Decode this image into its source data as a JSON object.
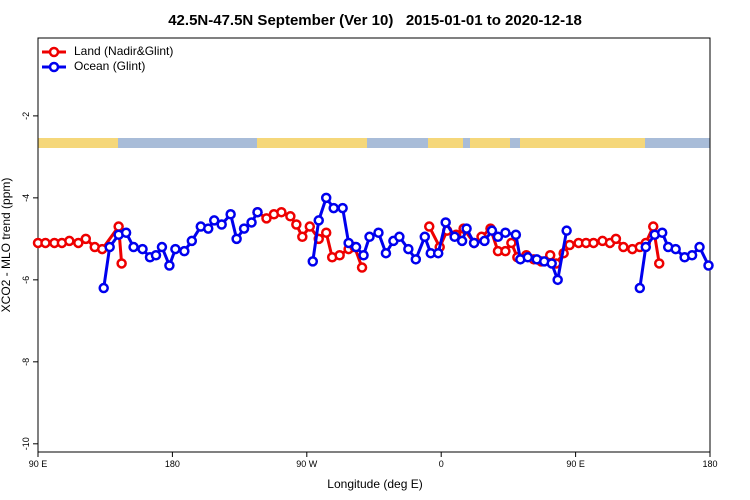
{
  "chart_data": {
    "type": "line",
    "title": "42.5N-47.5N September (Ver 10)   2015-01-01 to 2020-12-18",
    "xlabel": "Longitude (deg E)",
    "ylabel": "XCO2 - MLO trend (ppm)",
    "xlim": [
      90,
      540
    ],
    "ylim": [
      -10.2,
      -0.1
    ],
    "xticks": [
      {
        "value": 90,
        "label": "90 E"
      },
      180,
      {
        "value": 270,
        "label": "90 W"
      },
      {
        "value": 360,
        "label": "0"
      },
      {
        "value": 450,
        "label": "90 E"
      },
      {
        "value": 540,
        "label": "180"
      }
    ],
    "yticks": [
      -10,
      -8,
      -6,
      -4,
      -2
    ],
    "legend": "top-left",
    "series": [
      {
        "name": "Land (Nadir&Glint)",
        "color": "#ee0000",
        "x": [
          90,
          95,
          101,
          106,
          111,
          117,
          122,
          128,
          133,
          144,
          146,
          200,
          237,
          243,
          248,
          253,
          259,
          263,
          267,
          272,
          278,
          283,
          287,
          292,
          298,
          302,
          307,
          330,
          352,
          359,
          364,
          370,
          375,
          382,
          387,
          393,
          398,
          403,
          407,
          411,
          417,
          422,
          427,
          433,
          437,
          442,
          446,
          452,
          457,
          462,
          468,
          473,
          477,
          482,
          488,
          493,
          497,
          502,
          506
        ],
        "values": [
          -5.1,
          -5.1,
          -5.1,
          -5.1,
          -5.05,
          -5.1,
          -5.0,
          -5.2,
          -5.25,
          -4.7,
          -5.6,
          null,
          -4.35,
          -4.5,
          -4.4,
          -4.35,
          -4.45,
          -4.65,
          -4.95,
          -4.7,
          -5.0,
          -4.85,
          -5.45,
          -5.4,
          -5.25,
          -5.2,
          -5.7,
          null,
          -4.7,
          -5.2,
          -4.8,
          -4.9,
          -4.75,
          -5.1,
          -4.95,
          -4.75,
          -5.3,
          -5.3,
          -5.1,
          -5.45,
          -5.4,
          -5.5,
          -5.55,
          -5.4,
          -5.6,
          -5.35,
          -5.15,
          -5.1,
          -5.1,
          -5.1,
          -5.05,
          -5.1,
          -5.0,
          -5.2,
          -5.25,
          -5.2,
          -5.1,
          -4.7,
          -5.6
        ]
      },
      {
        "name": "Ocean (Glint)",
        "color": "#0000ee",
        "x": [
          134,
          138,
          144,
          149,
          154,
          160,
          165,
          169,
          173,
          178,
          182,
          188,
          193,
          199,
          204,
          208,
          213,
          219,
          223,
          228,
          233,
          237,
          255,
          274,
          278,
          283,
          288,
          294,
          298,
          303,
          308,
          312,
          318,
          323,
          328,
          332,
          338,
          343,
          349,
          353,
          358,
          363,
          369,
          374,
          377,
          382,
          389,
          394,
          398,
          403,
          410,
          413,
          418,
          424,
          429,
          434,
          438,
          444,
          470,
          493,
          497,
          503,
          508,
          512,
          517,
          523,
          528,
          533,
          539
        ],
        "values": [
          -6.2,
          -5.2,
          -4.9,
          -4.85,
          -5.2,
          -5.25,
          -5.45,
          -5.4,
          -5.2,
          -5.65,
          -5.25,
          -5.3,
          -5.05,
          -4.7,
          -4.75,
          -4.55,
          -4.65,
          -4.4,
          -5.0,
          -4.75,
          -4.6,
          -4.35,
          null,
          -5.55,
          -4.55,
          -4.0,
          -4.25,
          -4.25,
          -5.1,
          -5.2,
          -5.4,
          -4.95,
          -4.85,
          -5.35,
          -5.05,
          -4.95,
          -5.25,
          -5.5,
          -4.95,
          -5.35,
          -5.35,
          -4.6,
          -4.95,
          -5.05,
          -4.75,
          -5.1,
          -5.05,
          -4.8,
          -4.95,
          -4.85,
          -4.9,
          -5.5,
          -5.45,
          -5.5,
          -5.55,
          -5.6,
          -6.0,
          -4.8,
          null,
          -6.2,
          -5.2,
          -4.9,
          -4.85,
          -5.2,
          -5.25,
          -5.45,
          -5.4,
          -5.2,
          -5.65
        ]
      }
    ]
  }
}
